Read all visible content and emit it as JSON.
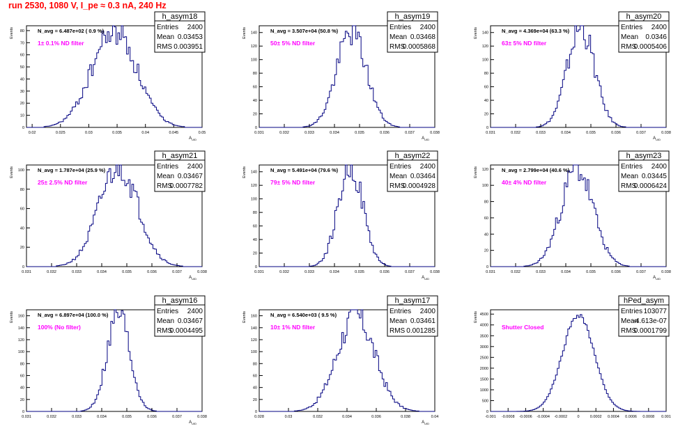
{
  "page": {
    "title": "run 2530,  1080 V, I_pe ≈ 0.3 nA, 240 Hz"
  },
  "colors": {
    "title": "#ff0000",
    "annotation": "#ff00ff",
    "histogram": "#000080",
    "frame": "#000000",
    "background": "#ffffff"
  },
  "stats_labels": {
    "entries": "Entries",
    "mean": "Mean",
    "rms": "RMS"
  },
  "chart_data": [
    {
      "type": "histogram",
      "name": "h_asym18",
      "avg_label": "N_avg = 6.487e+02 ( 0.9 %)",
      "filter_label": "1± 0.1% ND filter",
      "stats": {
        "entries": "2400",
        "mean": "0.03453",
        "rms": "0.003951"
      },
      "xlabel": "A_UID",
      "ylabel": "Events",
      "xlim": [
        0.019,
        0.05
      ],
      "ylim": [
        0,
        84
      ],
      "xticks": [
        0.02,
        0.025,
        0.03,
        0.035,
        0.04,
        0.045,
        0.05
      ],
      "yticks": [
        0,
        10,
        20,
        30,
        40,
        50,
        60,
        70,
        80
      ],
      "xticklabels": [
        "0.02",
        "0.025",
        "0.03",
        "0.035",
        "0.04",
        "0.045",
        "0.05"
      ],
      "yticklabels": [
        "0",
        "10",
        "20",
        "30",
        "40",
        "50",
        "60",
        "70",
        "80"
      ],
      "center": 0.0345,
      "sigma": 0.00395,
      "peak": 80,
      "bins": 100,
      "seed": 18
    },
    {
      "type": "histogram",
      "name": "h_asym19",
      "avg_label": "N_avg = 3.507e+04 (50.8 %)",
      "filter_label": "50± 5% ND filter",
      "stats": {
        "entries": "2400",
        "mean": "0.03468",
        "rms": "0.0005868"
      },
      "xlabel": "A_UID",
      "ylabel": "Events",
      "xlim": [
        0.031,
        0.038
      ],
      "ylim": [
        0,
        150
      ],
      "xticks": [
        0.031,
        0.032,
        0.033,
        0.034,
        0.035,
        0.036,
        0.037,
        0.038
      ],
      "yticks": [
        0,
        20,
        40,
        60,
        80,
        100,
        120,
        140
      ],
      "xticklabels": [
        "0.031",
        "0.032",
        "0.033",
        "0.034",
        "0.035",
        "0.036",
        "0.037",
        "0.038"
      ],
      "yticklabels": [
        "0",
        "20",
        "40",
        "60",
        "80",
        "100",
        "120",
        "140"
      ],
      "center": 0.03468,
      "sigma": 0.00059,
      "peak": 142,
      "bins": 100,
      "seed": 19
    },
    {
      "type": "histogram",
      "name": "h_asym20",
      "avg_label": "N_avg = 4.369e+04 (63.3 %)",
      "filter_label": "63± 5% ND filter",
      "stats": {
        "entries": "2400",
        "mean": "0.0346",
        "rms": "0.0005406"
      },
      "xlabel": "A_UID",
      "ylabel": "Events",
      "xlim": [
        0.031,
        0.038
      ],
      "ylim": [
        0,
        150
      ],
      "xticks": [
        0.031,
        0.032,
        0.033,
        0.034,
        0.035,
        0.036,
        0.037,
        0.038
      ],
      "yticks": [
        0,
        20,
        40,
        60,
        80,
        100,
        120,
        140
      ],
      "xticklabels": [
        "0.031",
        "0.032",
        "0.033",
        "0.034",
        "0.035",
        "0.036",
        "0.037",
        "0.038"
      ],
      "yticklabels": [
        "0",
        "20",
        "40",
        "60",
        "80",
        "100",
        "120",
        "140"
      ],
      "center": 0.0346,
      "sigma": 0.00054,
      "peak": 148,
      "bins": 100,
      "seed": 20
    },
    {
      "type": "histogram",
      "name": "h_asym21",
      "avg_label": "N_avg = 1.787e+04 (25.9 %)",
      "filter_label": "25± 2.5% ND filter",
      "stats": {
        "entries": "2400",
        "mean": "0.03467",
        "rms": "0.0007782"
      },
      "xlabel": "A_UID",
      "ylabel": "Events",
      "xlim": [
        0.031,
        0.038
      ],
      "ylim": [
        0,
        105
      ],
      "xticks": [
        0.031,
        0.032,
        0.033,
        0.034,
        0.035,
        0.036,
        0.037,
        0.038
      ],
      "yticks": [
        0,
        20,
        40,
        60,
        80,
        100
      ],
      "xticklabels": [
        "0.031",
        "0.032",
        "0.033",
        "0.034",
        "0.035",
        "0.036",
        "0.037",
        "0.038"
      ],
      "yticklabels": [
        "0",
        "20",
        "40",
        "60",
        "80",
        "100"
      ],
      "center": 0.03467,
      "sigma": 0.00078,
      "peak": 104,
      "bins": 100,
      "seed": 21
    },
    {
      "type": "histogram",
      "name": "h_asym22",
      "avg_label": "N_avg = 5.491e+04 (79.6 %)",
      "filter_label": "79± 5% ND filter",
      "stats": {
        "entries": "2400",
        "mean": "0.03464",
        "rms": "0.0004928"
      },
      "xlabel": "A_UID",
      "ylabel": "Events",
      "xlim": [
        0.031,
        0.038
      ],
      "ylim": [
        0,
        150
      ],
      "xticks": [
        0.031,
        0.032,
        0.033,
        0.034,
        0.035,
        0.036,
        0.037,
        0.038
      ],
      "yticks": [
        0,
        20,
        40,
        60,
        80,
        100,
        120,
        140
      ],
      "xticklabels": [
        "0.031",
        "0.032",
        "0.033",
        "0.034",
        "0.035",
        "0.036",
        "0.037",
        "0.038"
      ],
      "yticklabels": [
        "0",
        "20",
        "40",
        "60",
        "80",
        "100",
        "120",
        "140"
      ],
      "center": 0.03464,
      "sigma": 0.00049,
      "peak": 150,
      "bins": 100,
      "seed": 22
    },
    {
      "type": "histogram",
      "name": "h_asym23",
      "avg_label": "N_avg = 2.799e+04 (40.6 %)",
      "filter_label": "40± 4% ND filter",
      "stats": {
        "entries": "2400",
        "mean": "0.03445",
        "rms": "0.0006424"
      },
      "xlabel": "A_UID",
      "ylabel": "Events",
      "xlim": [
        0.031,
        0.038
      ],
      "ylim": [
        0,
        125
      ],
      "xticks": [
        0.031,
        0.032,
        0.033,
        0.034,
        0.035,
        0.036,
        0.037,
        0.038
      ],
      "yticks": [
        0,
        20,
        40,
        60,
        80,
        100,
        120
      ],
      "xticklabels": [
        "0.031",
        "0.032",
        "0.033",
        "0.034",
        "0.035",
        "0.036",
        "0.037",
        "0.038"
      ],
      "yticklabels": [
        "0",
        "20",
        "40",
        "60",
        "80",
        "100",
        "120"
      ],
      "center": 0.03445,
      "sigma": 0.00064,
      "peak": 120,
      "bins": 100,
      "seed": 23
    },
    {
      "type": "histogram",
      "name": "h_asym16",
      "avg_label": "N_avg = 6.897e+04 (100.0 %)",
      "filter_label": "100% (No filter)",
      "stats": {
        "entries": "2400",
        "mean": "0.03467",
        "rms": "0.0004495"
      },
      "xlabel": "A_UID",
      "ylabel": "Events",
      "xlim": [
        0.031,
        0.038
      ],
      "ylim": [
        0,
        170
      ],
      "xticks": [
        0.031,
        0.032,
        0.033,
        0.034,
        0.035,
        0.036,
        0.037,
        0.038
      ],
      "yticks": [
        0,
        20,
        40,
        60,
        80,
        100,
        120,
        140,
        160
      ],
      "xticklabels": [
        "0.031",
        "0.032",
        "0.033",
        "0.034",
        "0.035",
        "0.036",
        "0.037",
        "0.038"
      ],
      "yticklabels": [
        "0",
        "20",
        "40",
        "60",
        "80",
        "100",
        "120",
        "140",
        "160"
      ],
      "center": 0.03467,
      "sigma": 0.00045,
      "peak": 165,
      "bins": 100,
      "seed": 16
    },
    {
      "type": "histogram",
      "name": "h_asym17",
      "avg_label": "N_avg = 6.540e+03 ( 9.5 %)",
      "filter_label": "10± 1% ND filter",
      "stats": {
        "entries": "2400",
        "mean": "0.03461",
        "rms": "0.001285"
      },
      "xlabel": "A_UID",
      "ylabel": "Events",
      "xlim": [
        0.028,
        0.04
      ],
      "ylim": [
        0,
        170
      ],
      "xticks": [
        0.028,
        0.03,
        0.032,
        0.034,
        0.036,
        0.038,
        0.04
      ],
      "yticks": [
        0,
        20,
        40,
        60,
        80,
        100,
        120,
        140,
        160
      ],
      "xticklabels": [
        "0.028",
        "0.03",
        "0.032",
        "0.034",
        "0.036",
        "0.038",
        "0.04"
      ],
      "yticklabels": [
        "0",
        "20",
        "40",
        "60",
        "80",
        "100",
        "120",
        "140",
        "160"
      ],
      "center": 0.03461,
      "sigma": 0.00128,
      "peak": 160,
      "bins": 100,
      "seed": 17
    },
    {
      "type": "histogram",
      "name": "hPed_asym",
      "avg_label": "",
      "filter_label": "Shutter Closed",
      "stats": {
        "entries": "103077",
        "mean": "-4.613e-07",
        "rms": "0.0001799"
      },
      "xlabel": "",
      "ylabel": "Events",
      "xlim": [
        -0.001,
        0.001
      ],
      "ylim": [
        0,
        4700
      ],
      "xticks": [
        -0.001,
        -0.0008,
        -0.0006,
        -0.0004,
        -0.0002,
        0,
        0.0002,
        0.0004,
        0.0006,
        0.0008,
        0.001
      ],
      "yticks": [
        0,
        500,
        1000,
        1500,
        2000,
        2500,
        3000,
        3500,
        4000,
        4500
      ],
      "xticklabels": [
        "-0.001",
        "-0.0008",
        "-0.0006",
        "-0.0004",
        "-0.0002",
        "0",
        "0.0002",
        "0.0004",
        "0.0006",
        "0.0008",
        "0.001"
      ],
      "yticklabels": [
        "0",
        "500",
        "1000",
        "1500",
        "2000",
        "2500",
        "3000",
        "3500",
        "4000",
        "4500"
      ],
      "center": 0.0,
      "sigma": 0.00018,
      "peak": 4480,
      "bins": 100,
      "seed": 99
    }
  ]
}
